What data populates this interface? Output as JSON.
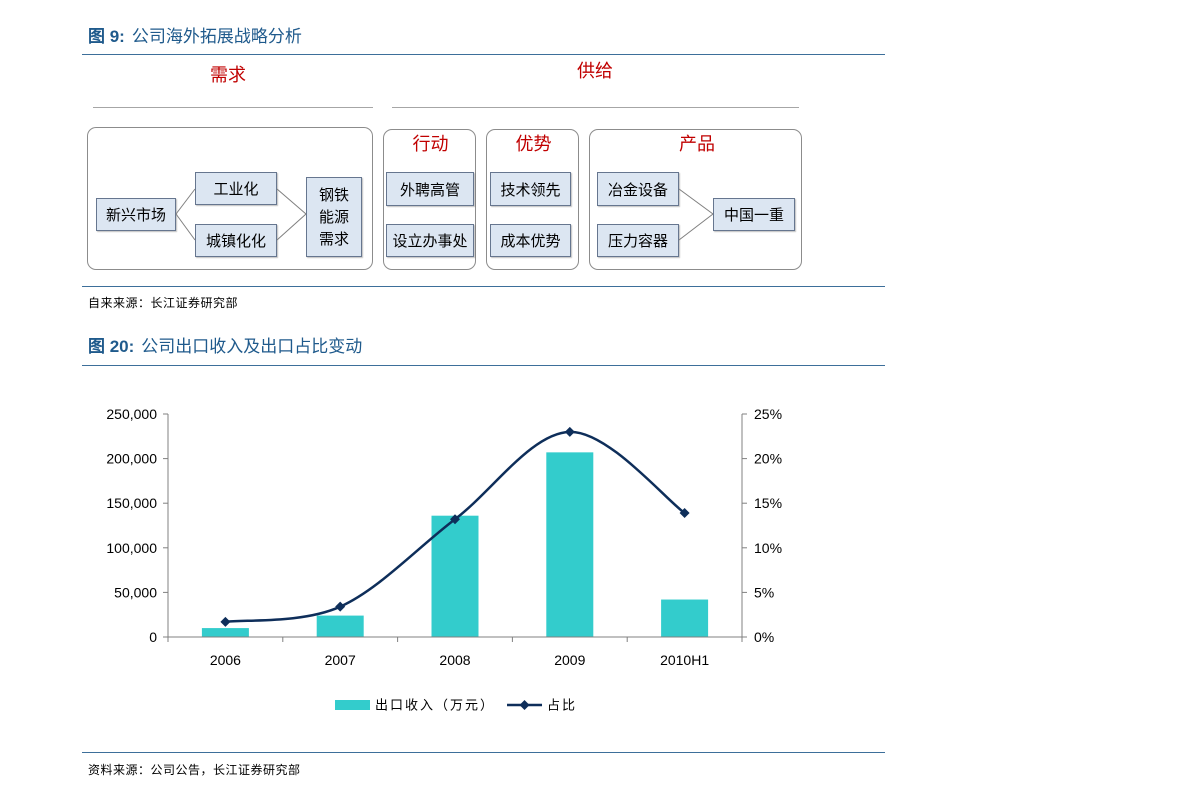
{
  "figure9": {
    "label": "图 9:",
    "title": "公司海外拓展战略分析",
    "demand_heading": "需求",
    "supply_heading": "供给",
    "demand_group": {
      "origin": "新兴市场",
      "drivers": [
        "工业化",
        "城镇化化"
      ],
      "result_lines": [
        "钢铁",
        "能源",
        "需求"
      ]
    },
    "action_group": {
      "heading": "行动",
      "items": [
        "外聘高管",
        "设立办事处"
      ]
    },
    "advantage_group": {
      "heading": "优势",
      "items": [
        "技术领先",
        "成本优势"
      ]
    },
    "product_group": {
      "heading": "产品",
      "items": [
        "冶金设备",
        "压力容器"
      ],
      "company": "中国一重"
    },
    "source": "自来来源：长江证券研究部"
  },
  "figure20": {
    "label": "图 20:",
    "title": "公司出口收入及出口占比变动",
    "source": "资料来源：公司公告，长江证券研究部"
  },
  "colors": {
    "title_blue": "#1f5a8c",
    "heading_red": "#c00000",
    "cell_fill": "#dce6f2"
  },
  "chart_data": {
    "type": "bar",
    "categories": [
      "2006",
      "2007",
      "2008",
      "2009",
      "2010H1"
    ],
    "series": [
      {
        "name": "出口收入（万元）",
        "type": "bar",
        "axis": "left",
        "values": [
          10000,
          24000,
          136000,
          207000,
          42000
        ],
        "color": "#33cccc"
      },
      {
        "name": "占比",
        "type": "line",
        "axis": "right",
        "values": [
          1.7,
          3.4,
          13.2,
          23.0,
          13.9
        ],
        "color": "#0e2e5a"
      }
    ],
    "y_left": {
      "range": [
        0,
        250000
      ],
      "ticks": [
        "0",
        "50,000",
        "100,000",
        "150,000",
        "200,000",
        "250,000"
      ]
    },
    "y_right": {
      "range": [
        0,
        25
      ],
      "ticks": [
        "0%",
        "5%",
        "10%",
        "15%",
        "20%",
        "25%"
      ]
    },
    "legend": "bottom",
    "grid": false
  }
}
